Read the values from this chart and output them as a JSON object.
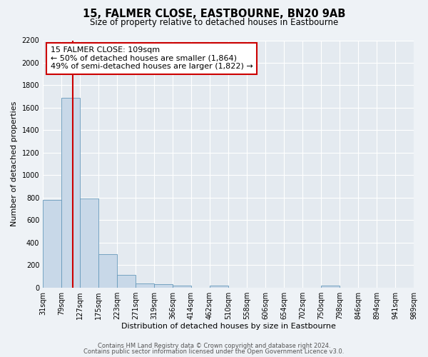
{
  "title": "15, FALMER CLOSE, EASTBOURNE, BN20 9AB",
  "subtitle": "Size of property relative to detached houses in Eastbourne",
  "xlabel": "Distribution of detached houses by size in Eastbourne",
  "ylabel": "Number of detached properties",
  "bar_edges": [
    31,
    79,
    127,
    175,
    223,
    271,
    319,
    366,
    414,
    462,
    510,
    558,
    606,
    654,
    702,
    750,
    798,
    846,
    894,
    941,
    989
  ],
  "bar_heights": [
    780,
    1690,
    795,
    295,
    110,
    35,
    28,
    20,
    0,
    20,
    0,
    0,
    0,
    0,
    0,
    20,
    0,
    0,
    0,
    0
  ],
  "bar_color": "#c8d8e8",
  "bar_edgecolor": "#6699bb",
  "vline_x": 109,
  "vline_color": "#cc0000",
  "annotation_line1": "15 FALMER CLOSE: 109sqm",
  "annotation_line2": "← 50% of detached houses are smaller (1,864)",
  "annotation_line3": "49% of semi-detached houses are larger (1,822) →",
  "ylim": [
    0,
    2200
  ],
  "yticks": [
    0,
    200,
    400,
    600,
    800,
    1000,
    1200,
    1400,
    1600,
    1800,
    2000,
    2200
  ],
  "tick_labels": [
    "31sqm",
    "79sqm",
    "127sqm",
    "175sqm",
    "223sqm",
    "271sqm",
    "319sqm",
    "366sqm",
    "414sqm",
    "462sqm",
    "510sqm",
    "558sqm",
    "606sqm",
    "654sqm",
    "702sqm",
    "750sqm",
    "798sqm",
    "846sqm",
    "894sqm",
    "941sqm",
    "989sqm"
  ],
  "footnote1": "Contains HM Land Registry data © Crown copyright and database right 2024.",
  "footnote2": "Contains public sector information licensed under the Open Government Licence v3.0.",
  "bg_color": "#eef2f6",
  "plot_bg_color": "#e4eaf0",
  "grid_color": "#ffffff",
  "title_fontsize": 10.5,
  "subtitle_fontsize": 8.5,
  "axis_label_fontsize": 8,
  "tick_fontsize": 7,
  "annotation_fontsize": 8,
  "footnote_fontsize": 6
}
